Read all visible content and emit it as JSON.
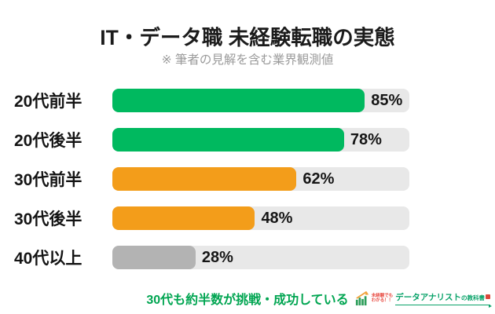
{
  "chart_data": {
    "type": "bar",
    "orientation": "horizontal",
    "title": "IT・データ職 未経験転職の実態",
    "subtitle": "※ 筆者の見解を含む業界観測値",
    "categories": [
      "20代前半",
      "20代後半",
      "30代前半",
      "30代後半",
      "40代以上"
    ],
    "values": [
      85,
      78,
      62,
      48,
      28
    ],
    "value_labels": [
      "85%",
      "78%",
      "62%",
      "48%",
      "28%"
    ],
    "bar_colors": [
      "#00b95f",
      "#00b95f",
      "#f39d1a",
      "#f39d1a",
      "#b3b3b3"
    ],
    "track_color": "#e8e8e8",
    "xlim": [
      0,
      100
    ],
    "grid": false,
    "legend": false,
    "annotation": "30代も約半数が挑戦・成功している",
    "annotation_color": "#00a551"
  },
  "logo": {
    "tagline_line1": "未経験でも",
    "tagline_line2": "わかる！！",
    "tagline_color": "#e8483f",
    "brand_main": "データアナリスト",
    "brand_small": "の教科書",
    "brand_color": "#0aa36a",
    "accent_color": "#d9483b"
  }
}
